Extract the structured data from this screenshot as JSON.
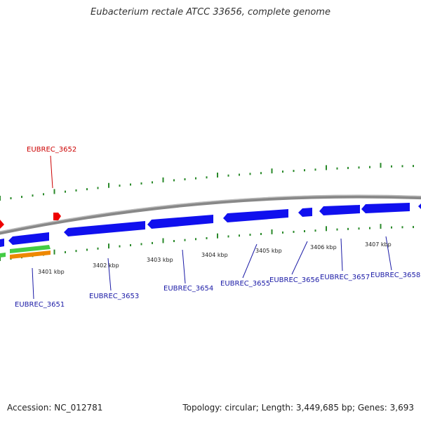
{
  "title": "Eubacterium rectale ATCC 33656, complete genome",
  "footer": {
    "accession": "Accession: NC_012781",
    "summary": "Topology: circular; Length: 3,449,685 bp; Genes: 3,693"
  },
  "scale_labels": [
    "3401 kbp",
    "3402 kbp",
    "3403 kbp",
    "3404 kbp",
    "3405 kbp",
    "3406 kbp",
    "3407 kbp"
  ],
  "genes_forward": [
    {
      "locus": "EUBREC_3652",
      "color": "#cc0000"
    }
  ],
  "genes_reverse": [
    {
      "locus": "EUBREC_3651",
      "color": "#1a1aa6"
    },
    {
      "locus": "EUBREC_3653",
      "color": "#1a1aa6"
    },
    {
      "locus": "EUBREC_3654",
      "color": "#1a1aa6"
    },
    {
      "locus": "EUBREC_3655",
      "color": "#1a1aa6"
    },
    {
      "locus": "EUBREC_3656",
      "color": "#1a1aa6"
    },
    {
      "locus": "EUBREC_3657",
      "color": "#1a1aa6"
    },
    {
      "locus": "EUBREC_3658",
      "color": "#1a1aa6"
    }
  ],
  "colors": {
    "backbone": "#8a8a8a",
    "forward_gene": "#ee0000",
    "reverse_gene": "#1010ee",
    "rna_green": "#44cc44",
    "rna_orange": "#ee8800",
    "ticks": "#2a8a2a"
  }
}
